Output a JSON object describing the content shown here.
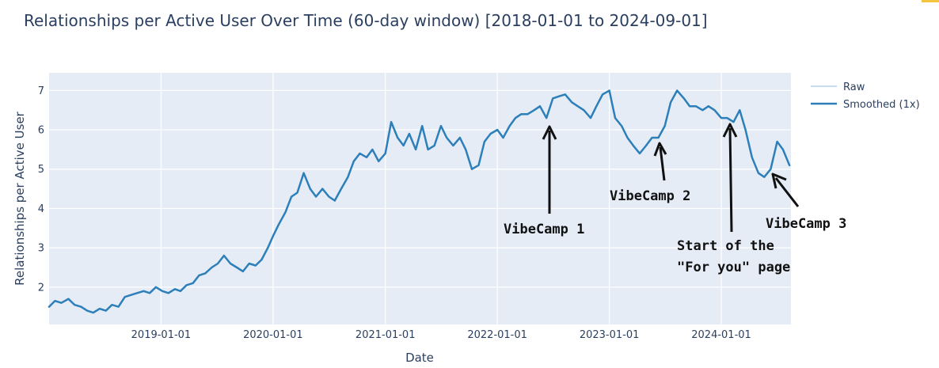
{
  "chart_data": {
    "type": "line",
    "title": "Relationships per Active User Over Time (60-day window) [2018-01-01 to 2024-09-01]",
    "xlabel": "Date",
    "ylabel": "Relationships per Active User",
    "xlim": [
      "2018-01-01",
      "2024-08-15"
    ],
    "ylim": [
      1.05,
      7.45
    ],
    "x_ticks": [
      "2019-01-01",
      "2020-01-01",
      "2021-01-01",
      "2022-01-01",
      "2023-01-01",
      "2024-01-01"
    ],
    "y_ticks": [
      2,
      3,
      4,
      5,
      6,
      7
    ],
    "grid": true,
    "legend_position": "top-right",
    "colors": {
      "raw": "#c6dbef",
      "smoothed": "#2c7fb8",
      "plot_bg": "#e5ecf6",
      "text": "#2a3f5f"
    },
    "series": [
      {
        "name": "Raw",
        "x": [],
        "values": []
      },
      {
        "name": "Smoothed (1x)",
        "x": [
          "2018-01-01",
          "2018-01-20",
          "2018-02-10",
          "2018-03-05",
          "2018-03-25",
          "2018-04-15",
          "2018-05-05",
          "2018-05-25",
          "2018-06-15",
          "2018-07-05",
          "2018-07-25",
          "2018-08-15",
          "2018-09-05",
          "2018-09-25",
          "2018-10-15",
          "2018-11-05",
          "2018-11-25",
          "2018-12-15",
          "2019-01-05",
          "2019-01-25",
          "2019-02-15",
          "2019-03-05",
          "2019-03-25",
          "2019-04-15",
          "2019-05-05",
          "2019-05-25",
          "2019-06-15",
          "2019-07-05",
          "2019-07-25",
          "2019-08-15",
          "2019-09-05",
          "2019-09-25",
          "2019-10-15",
          "2019-11-05",
          "2019-11-25",
          "2019-12-15",
          "2020-01-01",
          "2020-01-20",
          "2020-02-10",
          "2020-03-01",
          "2020-03-20",
          "2020-04-10",
          "2020-05-01",
          "2020-05-20",
          "2020-06-10",
          "2020-07-01",
          "2020-07-20",
          "2020-08-10",
          "2020-09-01",
          "2020-09-20",
          "2020-10-10",
          "2020-11-01",
          "2020-11-20",
          "2020-12-10",
          "2021-01-01",
          "2021-01-20",
          "2021-02-10",
          "2021-03-01",
          "2021-03-20",
          "2021-04-10",
          "2021-05-01",
          "2021-05-20",
          "2021-06-10",
          "2021-07-01",
          "2021-07-20",
          "2021-08-10",
          "2021-09-01",
          "2021-09-20",
          "2021-10-10",
          "2021-11-01",
          "2021-11-20",
          "2021-12-10",
          "2022-01-01",
          "2022-01-20",
          "2022-02-10",
          "2022-03-01",
          "2022-03-20",
          "2022-04-10",
          "2022-05-01",
          "2022-05-20",
          "2022-06-10",
          "2022-07-01",
          "2022-07-20",
          "2022-08-10",
          "2022-09-01",
          "2022-09-20",
          "2022-10-10",
          "2022-11-01",
          "2022-11-20",
          "2022-12-10",
          "2023-01-01",
          "2023-01-20",
          "2023-02-10",
          "2023-03-01",
          "2023-03-20",
          "2023-04-10",
          "2023-05-01",
          "2023-05-20",
          "2023-06-10",
          "2023-07-01",
          "2023-07-20",
          "2023-08-10",
          "2023-09-01",
          "2023-09-20",
          "2023-10-10",
          "2023-11-01",
          "2023-11-20",
          "2023-12-10",
          "2024-01-01",
          "2024-01-20",
          "2024-02-10",
          "2024-03-01",
          "2024-03-20",
          "2024-04-10",
          "2024-05-01",
          "2024-05-20",
          "2024-06-10",
          "2024-07-01",
          "2024-07-20",
          "2024-08-10"
        ],
        "values": [
          1.5,
          1.65,
          1.6,
          1.7,
          1.55,
          1.5,
          1.4,
          1.35,
          1.45,
          1.4,
          1.55,
          1.5,
          1.75,
          1.8,
          1.85,
          1.9,
          1.85,
          2.0,
          1.9,
          1.85,
          1.95,
          1.9,
          2.05,
          2.1,
          2.3,
          2.35,
          2.5,
          2.6,
          2.8,
          2.6,
          2.5,
          2.4,
          2.6,
          2.55,
          2.7,
          3.0,
          3.3,
          3.6,
          3.9,
          4.3,
          4.4,
          4.9,
          4.5,
          4.3,
          4.5,
          4.3,
          4.2,
          4.5,
          4.8,
          5.2,
          5.4,
          5.3,
          5.5,
          5.2,
          5.4,
          6.2,
          5.8,
          5.6,
          5.9,
          5.5,
          6.1,
          5.5,
          5.6,
          6.1,
          5.8,
          5.6,
          5.8,
          5.5,
          5.0,
          5.1,
          5.7,
          5.9,
          6.0,
          5.8,
          6.1,
          6.3,
          6.4,
          6.4,
          6.5,
          6.6,
          6.3,
          6.8,
          6.85,
          6.9,
          6.7,
          6.6,
          6.5,
          6.3,
          6.6,
          6.9,
          7.0,
          6.3,
          6.1,
          5.8,
          5.6,
          5.4,
          5.6,
          5.8,
          5.8,
          6.1,
          6.7,
          7.0,
          6.8,
          6.6,
          6.6,
          6.5,
          6.6,
          6.5,
          6.3,
          6.3,
          6.2,
          6.5,
          6.0,
          5.3,
          4.9,
          4.8,
          5.0,
          5.7,
          5.5,
          5.1
        ]
      }
    ],
    "annotations": [
      {
        "label": "VibeCamp 1",
        "x": "2022-07-01",
        "y": 6.3
      },
      {
        "label": "VibeCamp 2",
        "x": "2023-07-01",
        "y": 5.8
      },
      {
        "label": "Start of the \"For you\" page",
        "x": "2024-02-01",
        "y": 6.3
      },
      {
        "label": "VibeCamp 3",
        "x": "2024-06-01",
        "y": 4.95
      }
    ]
  }
}
